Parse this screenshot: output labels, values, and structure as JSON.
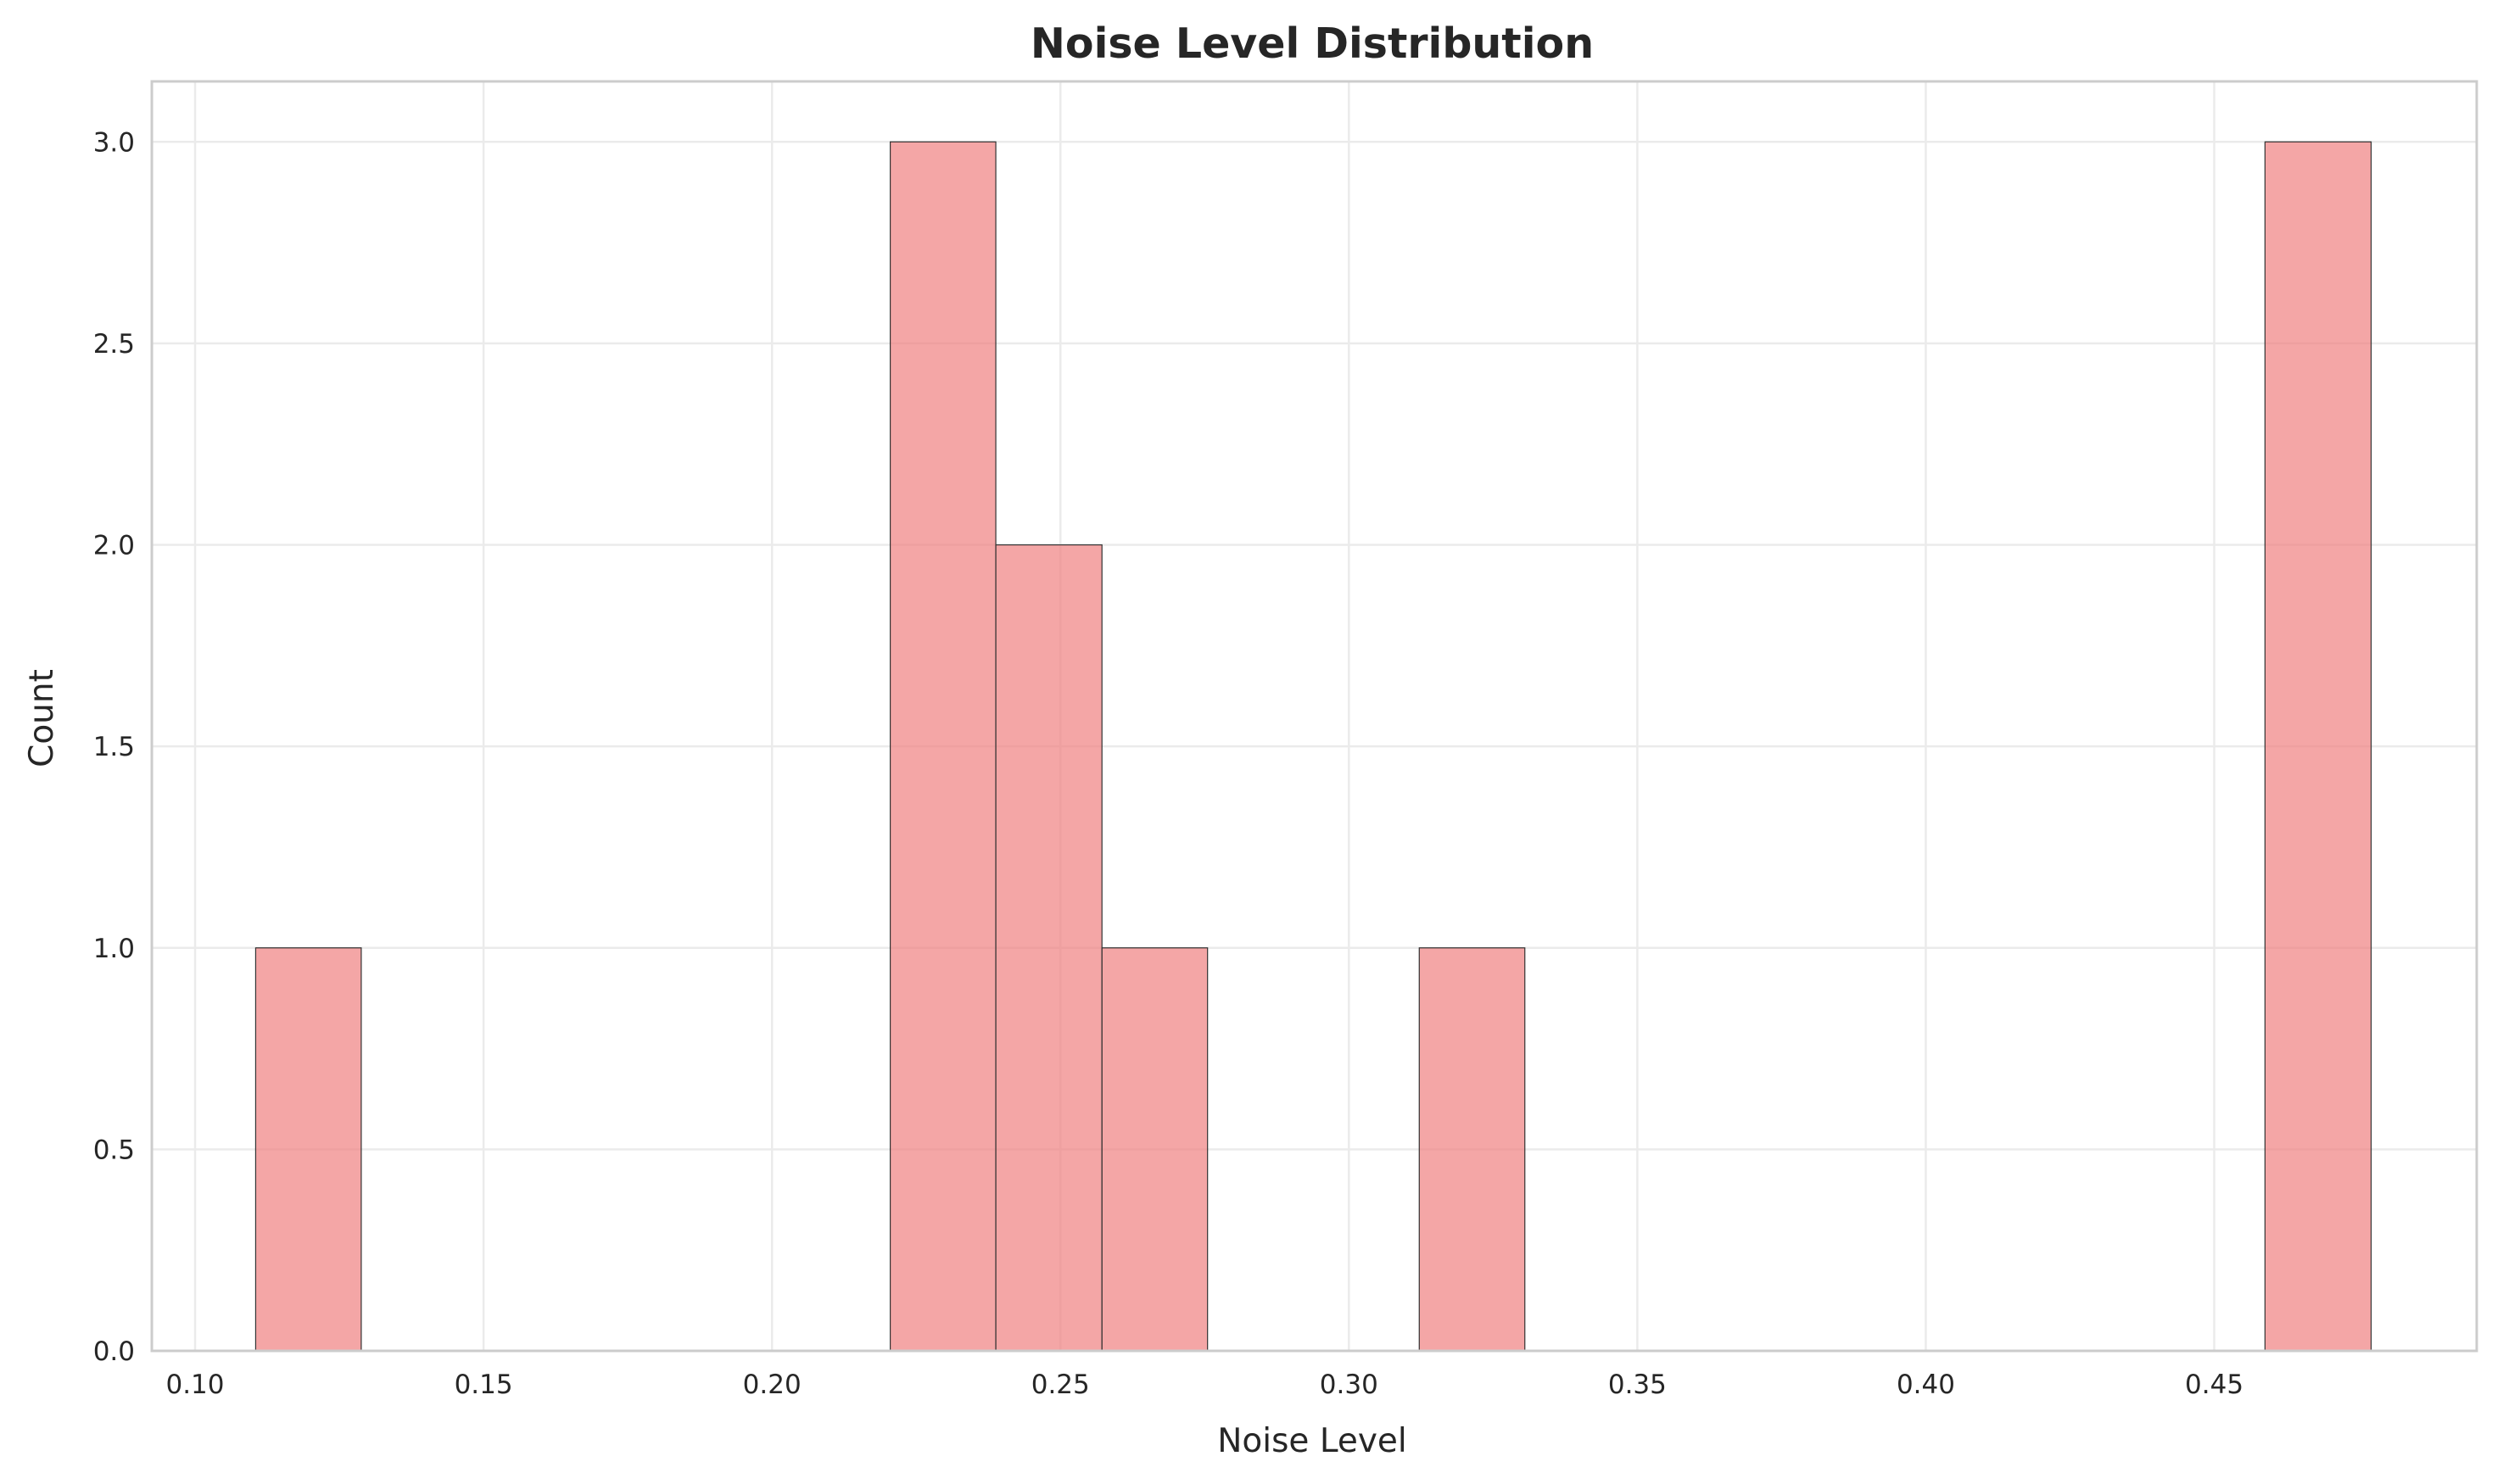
{
  "chart_data": {
    "type": "bar",
    "title": "Noise Level Distribution",
    "xlabel": "Noise Level",
    "ylabel": "Count",
    "xlim": [
      0.0925,
      0.4955
    ],
    "ylim": [
      0,
      3.15
    ],
    "grid": true,
    "legend": "none",
    "bar_color": "#f08080",
    "bar_opacity": 0.7,
    "edge_color": "#333333",
    "xticks": [
      {
        "value": 0.1,
        "label": "0.10"
      },
      {
        "value": 0.15,
        "label": "0.15"
      },
      {
        "value": 0.2,
        "label": "0.20"
      },
      {
        "value": 0.25,
        "label": "0.25"
      },
      {
        "value": 0.3,
        "label": "0.30"
      },
      {
        "value": 0.35,
        "label": "0.35"
      },
      {
        "value": 0.4,
        "label": "0.40"
      },
      {
        "value": 0.45,
        "label": "0.45"
      }
    ],
    "yticks": [
      {
        "value": 0.0,
        "label": "0.0"
      },
      {
        "value": 0.5,
        "label": "0.5"
      },
      {
        "value": 1.0,
        "label": "1.0"
      },
      {
        "value": 1.5,
        "label": "1.5"
      },
      {
        "value": 2.0,
        "label": "2.0"
      },
      {
        "value": 2.5,
        "label": "2.5"
      },
      {
        "value": 3.0,
        "label": "3.0"
      }
    ],
    "bins": [
      {
        "start": 0.1105,
        "end": 0.1288,
        "count": 1
      },
      {
        "start": 0.2205,
        "end": 0.2388,
        "count": 3
      },
      {
        "start": 0.2388,
        "end": 0.2572,
        "count": 2
      },
      {
        "start": 0.2572,
        "end": 0.2755,
        "count": 1
      },
      {
        "start": 0.3122,
        "end": 0.3305,
        "count": 1
      },
      {
        "start": 0.4588,
        "end": 0.4772,
        "count": 3
      }
    ]
  }
}
